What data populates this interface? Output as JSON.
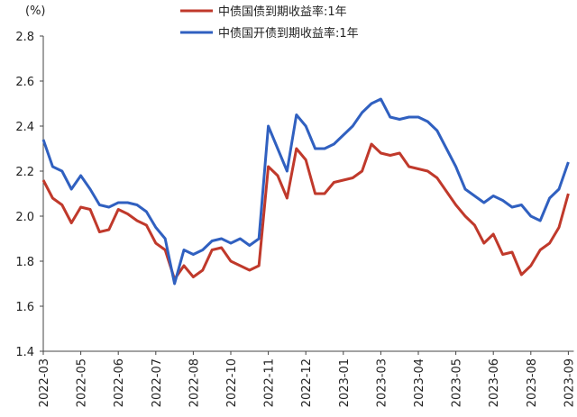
{
  "chart_data": {
    "type": "line",
    "y_unit": "(%)",
    "categories": [
      "2022-03",
      null,
      null,
      null,
      "2022-05",
      null,
      null,
      null,
      "2022-06",
      null,
      null,
      null,
      "2022-07",
      null,
      null,
      null,
      "2022-08",
      null,
      null,
      null,
      "2022-10",
      null,
      null,
      null,
      "2022-11",
      null,
      null,
      null,
      "2022-12",
      null,
      null,
      null,
      "2023-01",
      null,
      null,
      null,
      "2023-03",
      null,
      null,
      null,
      "2023-04",
      null,
      null,
      null,
      "2023-05",
      null,
      null,
      null,
      "2023-06",
      null,
      null,
      null,
      "2023-08",
      null,
      null,
      null,
      "2023-09"
    ],
    "series": [
      {
        "name": "中债国债到期收益率:1年",
        "color": "#c0392b",
        "values": [
          2.16,
          2.08,
          2.05,
          1.97,
          2.04,
          2.03,
          1.93,
          1.94,
          2.03,
          2.01,
          1.98,
          1.96,
          1.88,
          1.85,
          1.72,
          1.78,
          1.73,
          1.76,
          1.85,
          1.86,
          1.8,
          1.78,
          1.76,
          1.78,
          2.22,
          2.18,
          2.08,
          2.3,
          2.25,
          2.1,
          2.1,
          2.15,
          2.16,
          2.17,
          2.2,
          2.32,
          2.28,
          2.27,
          2.28,
          2.22,
          2.21,
          2.2,
          2.17,
          2.11,
          2.05,
          2.0,
          1.96,
          1.88,
          1.92,
          1.83,
          1.84,
          1.74,
          1.78,
          1.85,
          1.88,
          1.95,
          2.1
        ]
      },
      {
        "name": "中债国开债到期收益率:1年",
        "color": "#3060c0",
        "values": [
          2.34,
          2.22,
          2.2,
          2.12,
          2.18,
          2.12,
          2.05,
          2.04,
          2.06,
          2.06,
          2.05,
          2.02,
          1.95,
          1.9,
          1.7,
          1.85,
          1.83,
          1.85,
          1.89,
          1.9,
          1.88,
          1.9,
          1.87,
          1.9,
          2.4,
          2.3,
          2.2,
          2.45,
          2.4,
          2.3,
          2.3,
          2.32,
          2.36,
          2.4,
          2.46,
          2.5,
          2.52,
          2.44,
          2.43,
          2.44,
          2.44,
          2.42,
          2.38,
          2.3,
          2.22,
          2.12,
          2.09,
          2.06,
          2.09,
          2.07,
          2.04,
          2.05,
          2.0,
          1.98,
          2.08,
          2.12,
          2.24
        ]
      }
    ],
    "ylim": [
      1.4,
      2.8
    ],
    "yticks": [
      {
        "value": 1.4,
        "label": "1.4"
      },
      {
        "value": 1.6,
        "label": "1.6"
      },
      {
        "value": 1.8,
        "label": "1.8"
      },
      {
        "value": 2.0,
        "label": "2.0"
      },
      {
        "value": 2.2,
        "label": "2.2"
      },
      {
        "value": 2.4,
        "label": "2.4"
      },
      {
        "value": 2.6,
        "label": "2.6"
      },
      {
        "value": 2.8,
        "label": "2.8"
      }
    ],
    "legend": "top"
  }
}
